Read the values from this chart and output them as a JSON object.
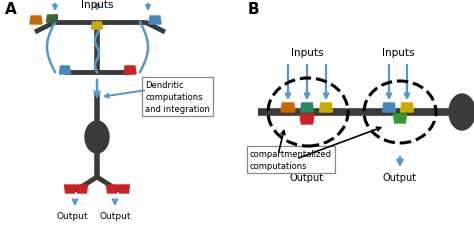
{
  "bg_color": "#ffffff",
  "dark_gray": "#3a3a3a",
  "arrow_blue": "#5599cc",
  "colors": {
    "orange": "#cc6600",
    "green": "#336633",
    "yellow": "#ccaa00",
    "red": "#cc2222",
    "blue_syn": "#4488bb",
    "teal": "#228866",
    "green2": "#339933"
  },
  "label_A": "A",
  "label_B": "B",
  "text_inputs": "Inputs",
  "text_output": "Output",
  "text_dendritic": "Dendritic\ncomputations\nand integration",
  "text_compartmentalized": "compartmentalized\ncomputations"
}
